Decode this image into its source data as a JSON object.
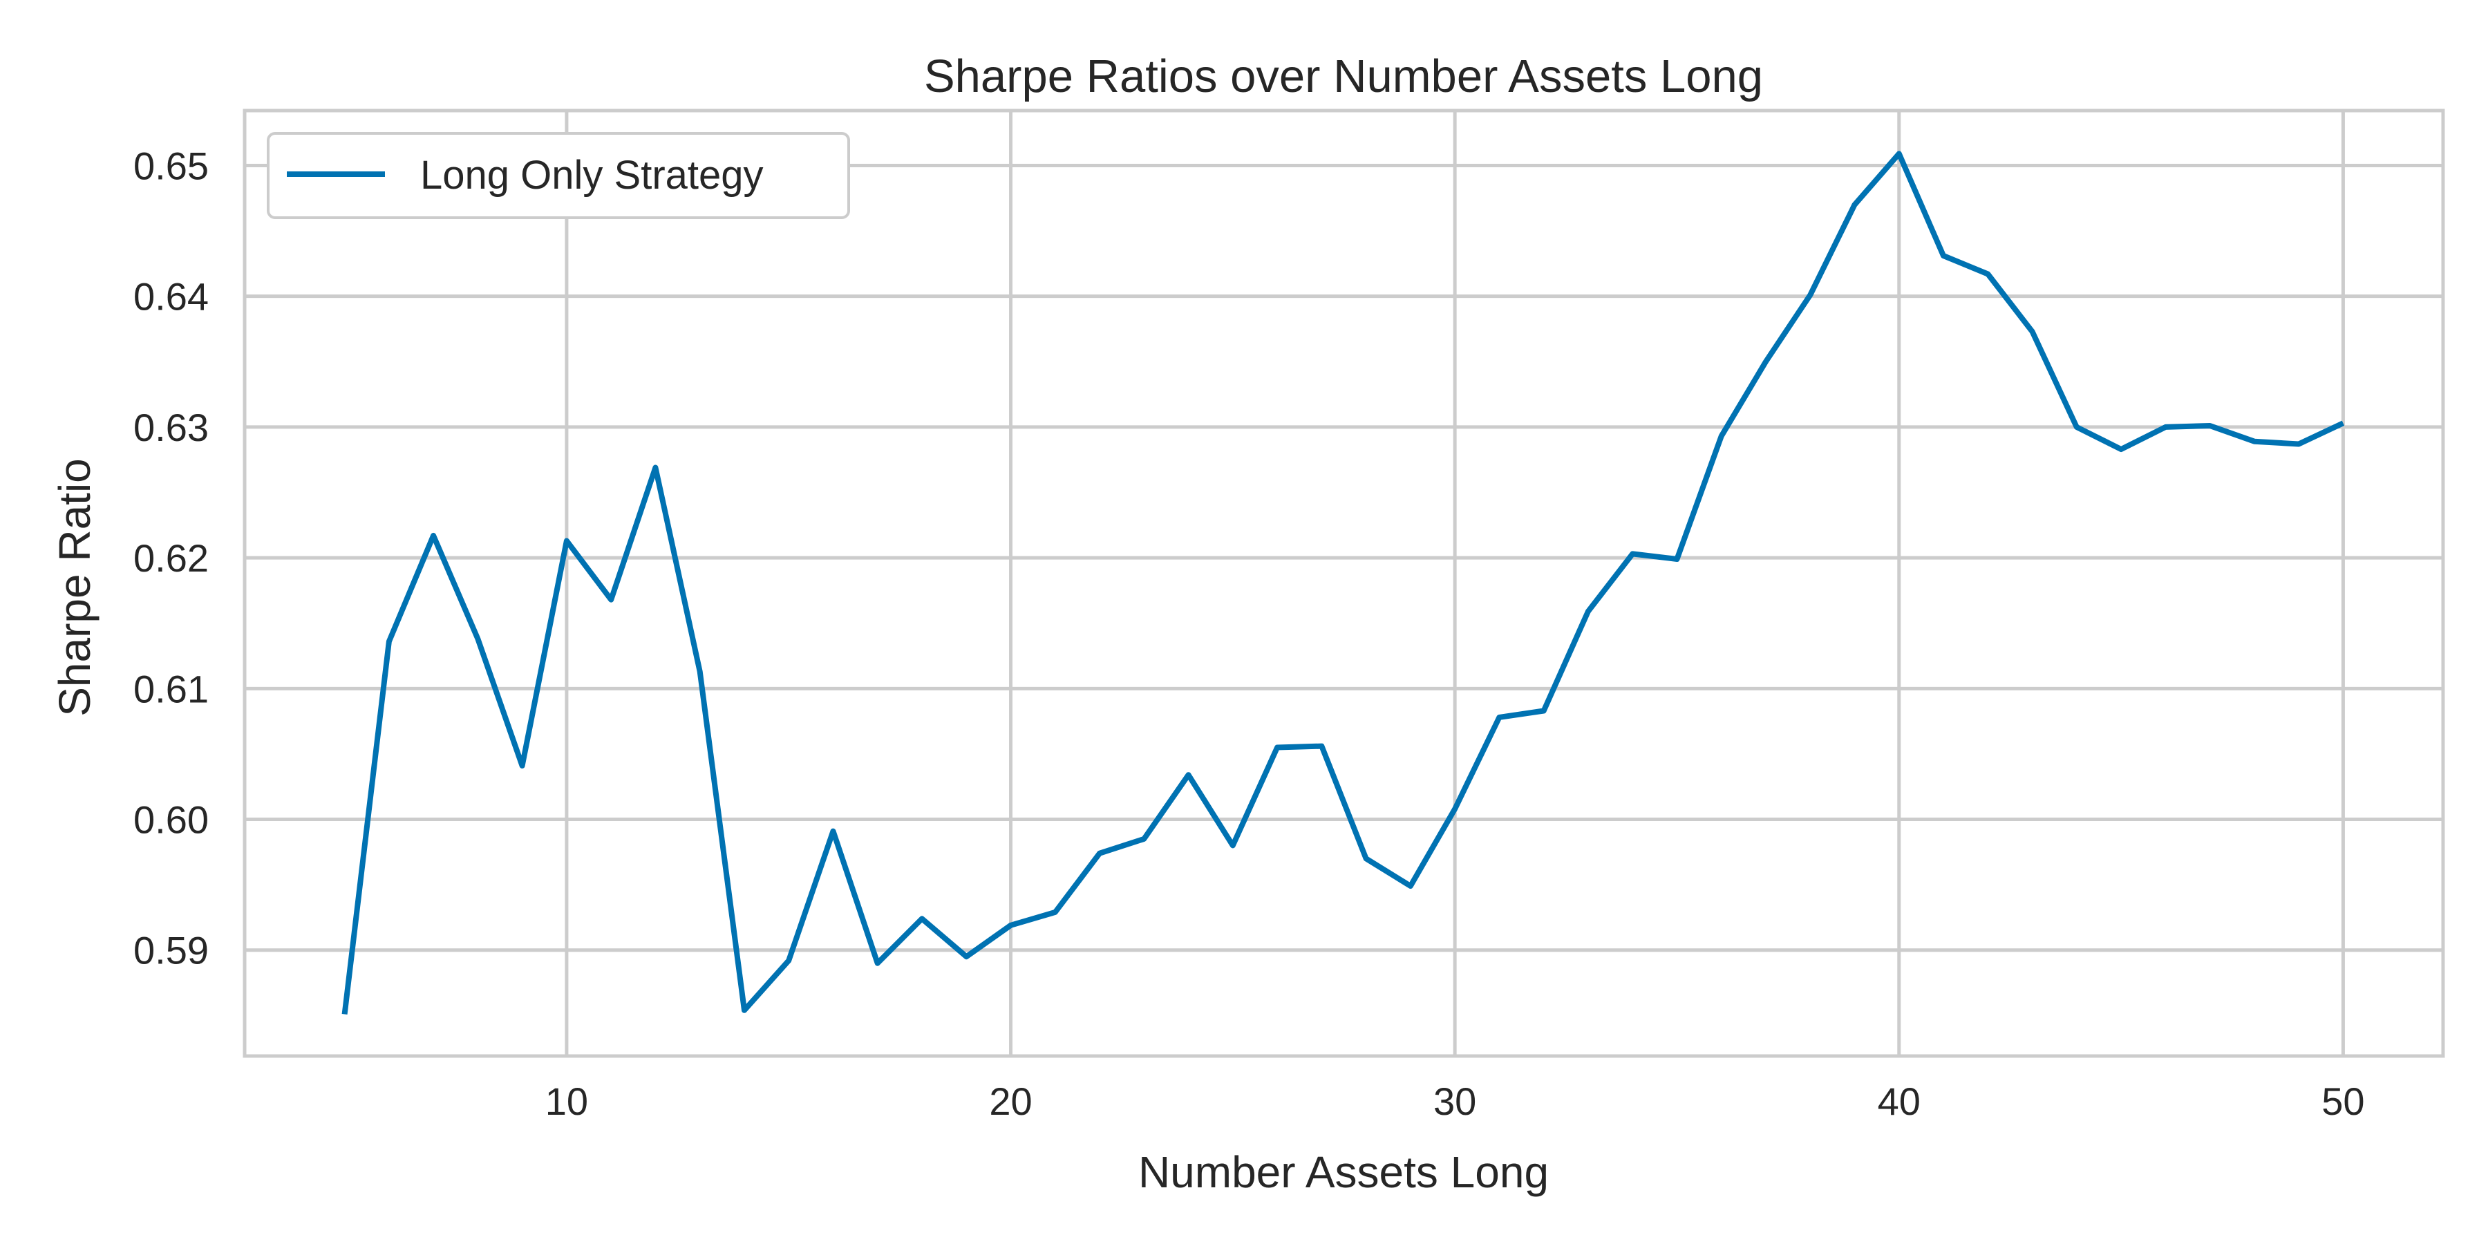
{
  "chart_data": {
    "type": "line",
    "title": "Sharpe Ratios over Number Assets Long",
    "xlabel": "Number Assets Long",
    "ylabel": "Sharpe Ratio",
    "xlim": [
      2.75,
      52.25
    ],
    "ylim": [
      0.5819,
      0.6542
    ],
    "xticks": [
      10,
      20,
      30,
      40,
      50
    ],
    "yticks": [
      0.59,
      0.6,
      0.61,
      0.62,
      0.63,
      0.64,
      0.65
    ],
    "ytick_labels": [
      "0.59",
      "0.60",
      "0.61",
      "0.62",
      "0.63",
      "0.64",
      "0.65"
    ],
    "grid": true,
    "legend_position": "top-left",
    "series": [
      {
        "name": "Long Only Strategy",
        "color": "#0072b2",
        "x": [
          5,
          6,
          7,
          8,
          9,
          10,
          11,
          12,
          13,
          14,
          15,
          16,
          17,
          18,
          19,
          20,
          21,
          22,
          23,
          24,
          25,
          26,
          27,
          28,
          29,
          30,
          31,
          32,
          33,
          34,
          35,
          36,
          37,
          38,
          39,
          40,
          41,
          42,
          43,
          44,
          45,
          46,
          47,
          48,
          49,
          50
        ],
        "y": [
          0.5851,
          0.6136,
          0.6217,
          0.6138,
          0.6041,
          0.6213,
          0.6168,
          0.6269,
          0.6113,
          0.5854,
          0.5892,
          0.5991,
          0.589,
          0.5924,
          0.5895,
          0.5919,
          0.5929,
          0.5974,
          0.5985,
          0.6034,
          0.598,
          0.6055,
          0.6056,
          0.597,
          0.5949,
          0.6008,
          0.6078,
          0.6083,
          0.6159,
          0.6203,
          0.6199,
          0.6293,
          0.635,
          0.6401,
          0.647,
          0.6509,
          0.6431,
          0.6417,
          0.6373,
          0.63,
          0.6283,
          0.63,
          0.6301,
          0.6289,
          0.6287,
          0.6303
        ]
      }
    ]
  }
}
